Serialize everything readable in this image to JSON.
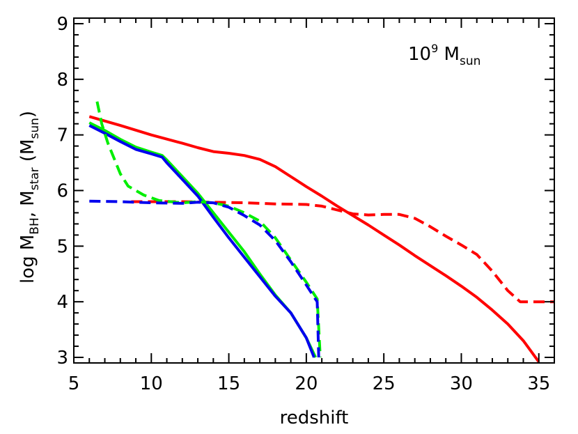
{
  "chart_data": {
    "type": "line",
    "title": "",
    "xlabel": "redshift",
    "ylabel": {
      "prefix": "log  M",
      "bh_sub": "BH",
      "middle": ",  M",
      "star_sub": "star",
      "unit_open": "   (M",
      "unit_sub": "sun",
      "unit_close": ")"
    },
    "xlim": [
      5,
      36
    ],
    "ylim": [
      2.9,
      9.1
    ],
    "x_ticks": [
      5,
      10,
      15,
      20,
      25,
      30,
      35
    ],
    "y_ticks": [
      3,
      4,
      5,
      6,
      7,
      8,
      9
    ],
    "annotation": {
      "base": "10",
      "exp": "9",
      "label": " M",
      "label_sub": "sun"
    },
    "grid": false,
    "series": [
      {
        "color": "#ff0000",
        "dash": "solid",
        "points": [
          [
            6,
            7.33
          ],
          [
            8,
            7.17
          ],
          [
            10,
            7.0
          ],
          [
            12,
            6.85
          ],
          [
            13,
            6.77
          ],
          [
            14,
            6.7
          ],
          [
            15,
            6.67
          ],
          [
            16,
            6.63
          ],
          [
            17,
            6.56
          ],
          [
            18,
            6.43
          ],
          [
            19,
            6.25
          ],
          [
            20,
            6.07
          ],
          [
            21,
            5.9
          ],
          [
            22,
            5.72
          ],
          [
            23,
            5.55
          ],
          [
            24,
            5.38
          ],
          [
            25,
            5.2
          ],
          [
            26,
            5.02
          ],
          [
            27,
            4.83
          ],
          [
            28,
            4.65
          ],
          [
            29,
            4.47
          ],
          [
            30,
            4.28
          ],
          [
            31,
            4.08
          ],
          [
            32,
            3.85
          ],
          [
            33,
            3.6
          ],
          [
            34,
            3.3
          ],
          [
            35,
            2.92
          ]
        ]
      },
      {
        "color": "#ff0000",
        "dash": "dashed",
        "points": [
          [
            8.7,
            5.8
          ],
          [
            10,
            5.8
          ],
          [
            12,
            5.8
          ],
          [
            14,
            5.79
          ],
          [
            16,
            5.78
          ],
          [
            18,
            5.76
          ],
          [
            20,
            5.75
          ],
          [
            21,
            5.72
          ],
          [
            22,
            5.65
          ],
          [
            23,
            5.58
          ],
          [
            24,
            5.56
          ],
          [
            25,
            5.57
          ],
          [
            26,
            5.57
          ],
          [
            27,
            5.5
          ],
          [
            28,
            5.35
          ],
          [
            29,
            5.18
          ],
          [
            30,
            5.02
          ],
          [
            31,
            4.85
          ],
          [
            32,
            4.55
          ],
          [
            33,
            4.2
          ],
          [
            33.8,
            4.0
          ],
          [
            36,
            4.0
          ]
        ]
      },
      {
        "color": "#00ee00",
        "dash": "solid",
        "points": [
          [
            6,
            7.22
          ],
          [
            7,
            7.08
          ],
          [
            8,
            6.92
          ],
          [
            9,
            6.78
          ],
          [
            10,
            6.69
          ],
          [
            10.7,
            6.63
          ],
          [
            11,
            6.55
          ],
          [
            12,
            6.25
          ],
          [
            13,
            5.95
          ],
          [
            14,
            5.6
          ],
          [
            15,
            5.25
          ],
          [
            16,
            4.9
          ],
          [
            17,
            4.5
          ],
          [
            18,
            4.12
          ],
          [
            19,
            3.8
          ],
          [
            20,
            3.35
          ],
          [
            20.6,
            3.0
          ]
        ]
      },
      {
        "color": "#0000ee",
        "dash": "solid",
        "points": [
          [
            6,
            7.17
          ],
          [
            7,
            7.03
          ],
          [
            8,
            6.88
          ],
          [
            9,
            6.74
          ],
          [
            10,
            6.66
          ],
          [
            10.7,
            6.6
          ],
          [
            11,
            6.5
          ],
          [
            12,
            6.2
          ],
          [
            13,
            5.9
          ],
          [
            14,
            5.52
          ],
          [
            15,
            5.15
          ],
          [
            16,
            4.8
          ],
          [
            17,
            4.45
          ],
          [
            18,
            4.1
          ],
          [
            19,
            3.8
          ],
          [
            20,
            3.35
          ],
          [
            20.5,
            3.0
          ]
        ]
      },
      {
        "color": "#00ee00",
        "dash": "dashed",
        "points": [
          [
            6.5,
            7.6
          ],
          [
            6.8,
            7.2
          ],
          [
            7.2,
            6.85
          ],
          [
            8,
            6.3
          ],
          [
            8.5,
            6.08
          ],
          [
            9.5,
            5.92
          ],
          [
            10.5,
            5.82
          ],
          [
            12,
            5.78
          ],
          [
            13,
            5.8
          ],
          [
            14,
            5.78
          ],
          [
            15,
            5.72
          ],
          [
            16,
            5.6
          ],
          [
            17,
            5.45
          ],
          [
            18,
            5.15
          ],
          [
            19,
            4.75
          ],
          [
            20,
            4.35
          ],
          [
            20.7,
            4.05
          ],
          [
            20.9,
            3.0
          ]
        ]
      },
      {
        "color": "#0000ee",
        "dash": "dashed",
        "points": [
          [
            6,
            5.81
          ],
          [
            8,
            5.8
          ],
          [
            10,
            5.78
          ],
          [
            12,
            5.77
          ],
          [
            13,
            5.79
          ],
          [
            14,
            5.78
          ],
          [
            15,
            5.7
          ],
          [
            16,
            5.55
          ],
          [
            17,
            5.38
          ],
          [
            18,
            5.1
          ],
          [
            19,
            4.72
          ],
          [
            20,
            4.3
          ],
          [
            20.7,
            4.0
          ],
          [
            20.8,
            3.0
          ]
        ]
      }
    ]
  }
}
